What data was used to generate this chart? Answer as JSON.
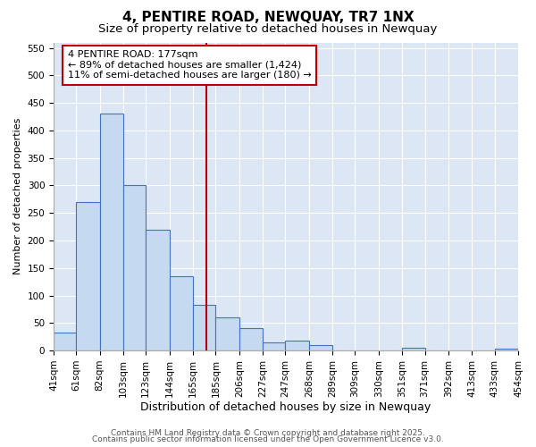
{
  "title": "4, PENTIRE ROAD, NEWQUAY, TR7 1NX",
  "subtitle": "Size of property relative to detached houses in Newquay",
  "xlabel": "Distribution of detached houses by size in Newquay",
  "ylabel": "Number of detached properties",
  "bin_edges": [
    41,
    61,
    82,
    103,
    123,
    144,
    165,
    185,
    206,
    227,
    247,
    268,
    289,
    309,
    330,
    351,
    371,
    392,
    413,
    433,
    454
  ],
  "bar_heights": [
    33,
    270,
    430,
    300,
    220,
    135,
    83,
    60,
    40,
    15,
    18,
    10,
    0,
    0,
    0,
    5,
    0,
    0,
    0,
    3
  ],
  "property_size": 177,
  "bar_color": "#c5d9f0",
  "bar_edge_color": "#4472c4",
  "vline_color": "#c00000",
  "fig_background_color": "#ffffff",
  "axes_background_color": "#dce6f5",
  "grid_color": "#ffffff",
  "annotation_box_text": "4 PENTIRE ROAD: 177sqm\n← 89% of detached houses are smaller (1,424)\n11% of semi-detached houses are larger (180) →",
  "annotation_box_facecolor": "#ffffff",
  "annotation_box_edgecolor": "#c00000",
  "ylim": [
    0,
    560
  ],
  "yticks": [
    0,
    50,
    100,
    150,
    200,
    250,
    300,
    350,
    400,
    450,
    500,
    550
  ],
  "footer1": "Contains HM Land Registry data © Crown copyright and database right 2025.",
  "footer2": "Contains public sector information licensed under the Open Government Licence v3.0.",
  "title_fontsize": 11,
  "subtitle_fontsize": 9.5,
  "xlabel_fontsize": 9,
  "ylabel_fontsize": 8,
  "tick_fontsize": 7.5,
  "annotation_fontsize": 8,
  "footer_fontsize": 6.5
}
